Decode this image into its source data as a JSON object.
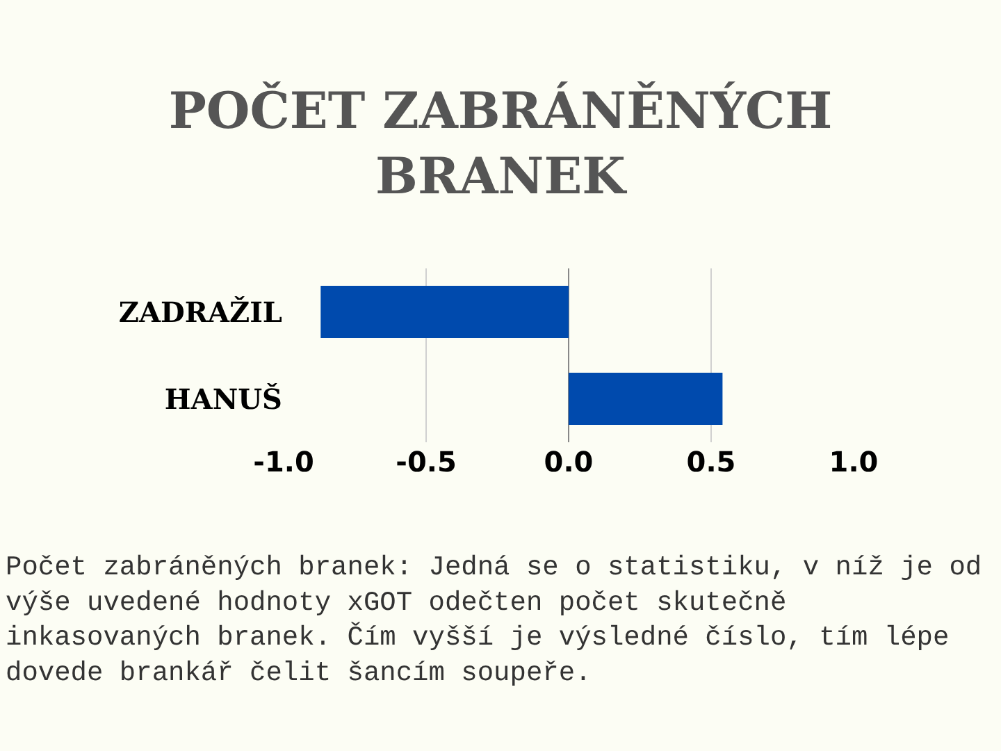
{
  "chart_data": {
    "type": "bar",
    "orientation": "horizontal",
    "title": "POČET ZABRÁNĚNÝCH BRANEK",
    "categories": [
      "ZADRAŽIL",
      "HANUŠ"
    ],
    "values": [
      -0.87,
      0.54
    ],
    "color": "#004aad",
    "xlim": [
      -1,
      1
    ],
    "xticks": [
      {
        "value": -1,
        "label": "-1.0"
      },
      {
        "value": -0.5,
        "label": "-0.5"
      },
      {
        "value": 0,
        "label": "0.0"
      },
      {
        "value": 0.5,
        "label": "0.5"
      },
      {
        "value": 1,
        "label": "1.0"
      }
    ],
    "grid": "x",
    "annotations": [
      "Počet zabráněných branek: Jedná se o statistiku, v níž je od výše uvedené hodnoty xGOT odečten počet skutečně inkasovaných branek. Čím vyšší je výsledné číslo, tím lépe dovede brankář čelit šancím soupeře."
    ]
  }
}
